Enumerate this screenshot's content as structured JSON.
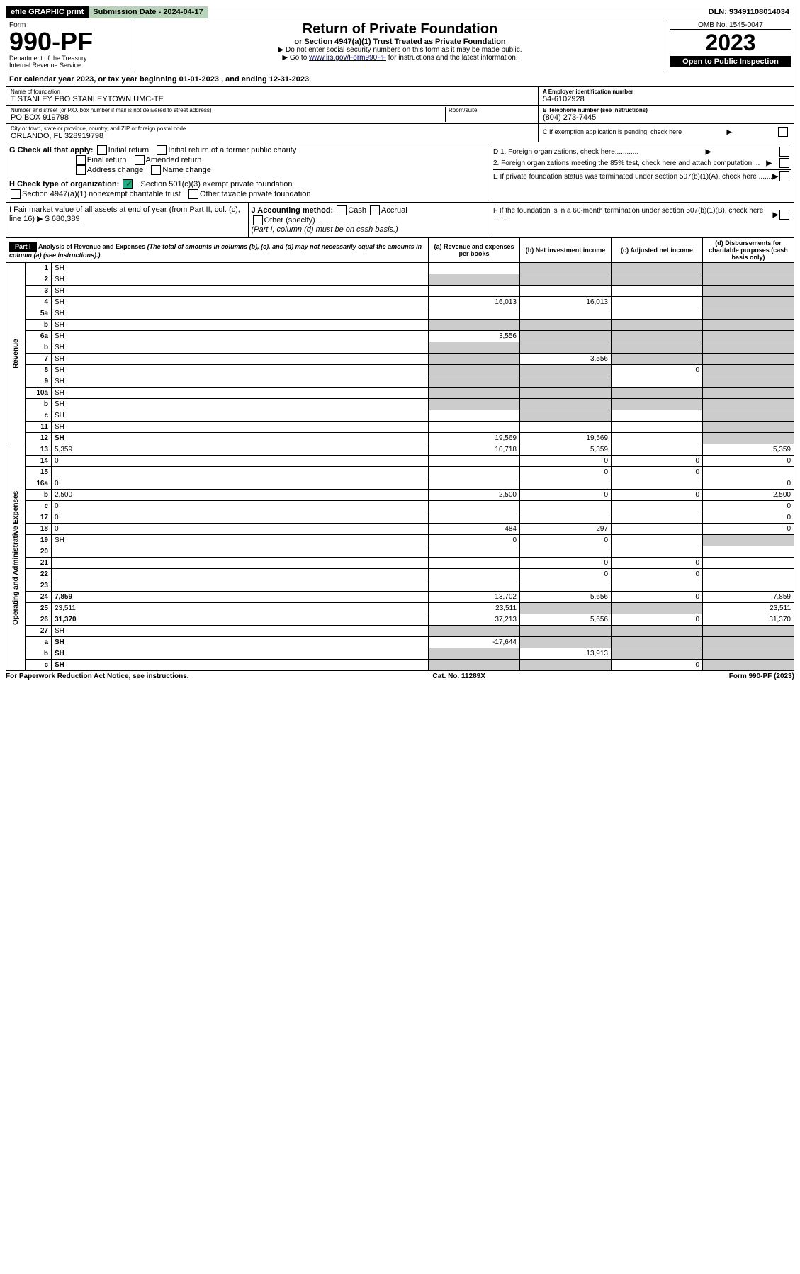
{
  "top": {
    "efile": "efile GRAPHIC print",
    "submission": "Submission Date - 2024-04-17",
    "dln": "DLN: 93491108014034"
  },
  "header": {
    "form_word": "Form",
    "form_num": "990-PF",
    "dept": "Department of the Treasury",
    "irs": "Internal Revenue Service",
    "title": "Return of Private Foundation",
    "subtitle": "or Section 4947(a)(1) Trust Treated as Private Foundation",
    "note1": "▶ Do not enter social security numbers on this form as it may be made public.",
    "note2_pre": "▶ Go to ",
    "note2_link": "www.irs.gov/Form990PF",
    "note2_post": " for instructions and the latest information.",
    "omb": "OMB No. 1545-0047",
    "year": "2023",
    "open": "Open to Public Inspection"
  },
  "cal": {
    "text_pre": "For calendar year 2023, or tax year beginning ",
    "begin": "01-01-2023",
    "mid": " , and ending ",
    "end": "12-31-2023"
  },
  "foundation": {
    "name_label": "Name of foundation",
    "name": "T STANLEY FBO STANLEYTOWN UMC-TE",
    "addr_label": "Number and street (or P.O. box number if mail is not delivered to street address)",
    "addr": "PO BOX 919798",
    "room_label": "Room/suite",
    "city_label": "City or town, state or province, country, and ZIP or foreign postal code",
    "city": "ORLANDO, FL  328919798",
    "ein_label": "A Employer identification number",
    "ein": "54-6102928",
    "tel_label": "B Telephone number (see instructions)",
    "tel": "(804) 273-7445",
    "c": "C If exemption application is pending, check here",
    "d1": "D 1. Foreign organizations, check here............",
    "d2": "2. Foreign organizations meeting the 85% test, check here and attach computation ...",
    "e": "E If private foundation status was terminated under section 507(b)(1)(A), check here .......",
    "f": "F If the foundation is in a 60-month termination under section 507(b)(1)(B), check here .......",
    "g_label": "G Check all that apply:",
    "g_opts": [
      "Initial return",
      "Initial return of a former public charity",
      "Final return",
      "Amended return",
      "Address change",
      "Name change"
    ],
    "h_label": "H Check type of organization:",
    "h1": "Section 501(c)(3) exempt private foundation",
    "h2": "Section 4947(a)(1) nonexempt charitable trust",
    "h3": "Other taxable private foundation",
    "i_label": "I Fair market value of all assets at end of year (from Part II, col. (c), line 16) ▶ $",
    "i_val": "680,389",
    "j_label": "J Accounting method:",
    "j_cash": "Cash",
    "j_accrual": "Accrual",
    "j_other": "Other (specify)",
    "j_note": "(Part I, column (d) must be on cash basis.)"
  },
  "part1": {
    "header": "Part I",
    "title": "Analysis of Revenue and Expenses",
    "title_note": "(The total of amounts in columns (b), (c), and (d) may not necessarily equal the amounts in column (a) (see instructions).)",
    "col_a": "(a) Revenue and expenses per books",
    "col_b": "(b) Net investment income",
    "col_c": "(c) Adjusted net income",
    "col_d": "(d) Disbursements for charitable purposes (cash basis only)",
    "revenue_label": "Revenue",
    "expenses_label": "Operating and Administrative Expenses"
  },
  "lines": [
    {
      "n": "1",
      "d": "SH",
      "a": "",
      "b": "SH",
      "c": "SH"
    },
    {
      "n": "2",
      "d": "SH",
      "a": "SH",
      "b": "SH",
      "c": "SH"
    },
    {
      "n": "3",
      "d": "SH",
      "a": "",
      "b": "",
      "c": ""
    },
    {
      "n": "4",
      "d": "SH",
      "a": "16,013",
      "b": "16,013",
      "c": ""
    },
    {
      "n": "5a",
      "d": "SH",
      "a": "",
      "b": "",
      "c": ""
    },
    {
      "n": "b",
      "d": "SH",
      "a": "SH",
      "b": "SH",
      "c": "SH"
    },
    {
      "n": "6a",
      "d": "SH",
      "a": "3,556",
      "b": "SH",
      "c": "SH"
    },
    {
      "n": "b",
      "d": "SH",
      "a": "SH",
      "b": "SH",
      "c": "SH"
    },
    {
      "n": "7",
      "d": "SH",
      "a": "SH",
      "b": "3,556",
      "c": "SH"
    },
    {
      "n": "8",
      "d": "SH",
      "a": "SH",
      "b": "SH",
      "c": "0"
    },
    {
      "n": "9",
      "d": "SH",
      "a": "SH",
      "b": "SH",
      "c": ""
    },
    {
      "n": "10a",
      "d": "SH",
      "a": "SH",
      "b": "SH",
      "c": "SH"
    },
    {
      "n": "b",
      "d": "SH",
      "a": "SH",
      "b": "SH",
      "c": "SH"
    },
    {
      "n": "c",
      "d": "SH",
      "a": "",
      "b": "SH",
      "c": ""
    },
    {
      "n": "11",
      "d": "SH",
      "a": "",
      "b": "",
      "c": ""
    },
    {
      "n": "12",
      "d": "SH",
      "a": "19,569",
      "b": "19,569",
      "c": "",
      "bold": true
    },
    {
      "n": "13",
      "d": "5,359",
      "a": "10,718",
      "b": "5,359",
      "c": ""
    },
    {
      "n": "14",
      "d": "0",
      "a": "",
      "b": "0",
      "c": "0"
    },
    {
      "n": "15",
      "d": "",
      "a": "",
      "b": "0",
      "c": "0"
    },
    {
      "n": "16a",
      "d": "0",
      "a": "",
      "b": "",
      "c": ""
    },
    {
      "n": "b",
      "d": "2,500",
      "a": "2,500",
      "b": "0",
      "c": "0"
    },
    {
      "n": "c",
      "d": "0",
      "a": "",
      "b": "",
      "c": ""
    },
    {
      "n": "17",
      "d": "0",
      "a": "",
      "b": "",
      "c": ""
    },
    {
      "n": "18",
      "d": "0",
      "a": "484",
      "b": "297",
      "c": ""
    },
    {
      "n": "19",
      "d": "SH",
      "a": "0",
      "b": "0",
      "c": ""
    },
    {
      "n": "20",
      "d": "",
      "a": "",
      "b": "",
      "c": ""
    },
    {
      "n": "21",
      "d": "",
      "a": "",
      "b": "0",
      "c": "0"
    },
    {
      "n": "22",
      "d": "",
      "a": "",
      "b": "0",
      "c": "0"
    },
    {
      "n": "23",
      "d": "",
      "a": "",
      "b": "",
      "c": ""
    },
    {
      "n": "24",
      "d": "7,859",
      "a": "13,702",
      "b": "5,656",
      "c": "0",
      "bold": true
    },
    {
      "n": "25",
      "d": "23,511",
      "a": "23,511",
      "b": "SH",
      "c": "SH"
    },
    {
      "n": "26",
      "d": "31,370",
      "a": "37,213",
      "b": "5,656",
      "c": "0",
      "bold": true
    },
    {
      "n": "27",
      "d": "SH",
      "a": "SH",
      "b": "SH",
      "c": "SH"
    },
    {
      "n": "a",
      "d": "SH",
      "a": "-17,644",
      "b": "SH",
      "c": "SH",
      "bold": true
    },
    {
      "n": "b",
      "d": "SH",
      "a": "SH",
      "b": "13,913",
      "c": "SH",
      "bold": true
    },
    {
      "n": "c",
      "d": "SH",
      "a": "SH",
      "b": "SH",
      "c": "0",
      "bold": true
    }
  ],
  "bottom": {
    "left": "For Paperwork Reduction Act Notice, see instructions.",
    "cat": "Cat. No. 11289X",
    "form": "Form 990-PF (2023)"
  }
}
